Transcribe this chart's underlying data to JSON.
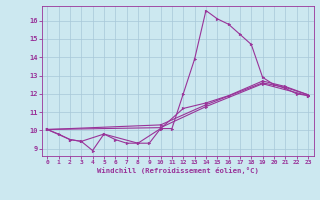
{
  "xlabel": "Windchill (Refroidissement éolien,°C)",
  "bg_color": "#cce8f0",
  "line_color": "#993399",
  "grid_color": "#a8c8d8",
  "xlim": [
    -0.5,
    23.5
  ],
  "ylim": [
    8.6,
    16.8
  ],
  "xticks": [
    0,
    1,
    2,
    3,
    4,
    5,
    6,
    7,
    8,
    9,
    10,
    11,
    12,
    13,
    14,
    15,
    16,
    17,
    18,
    19,
    20,
    21,
    22,
    23
  ],
  "yticks": [
    9,
    10,
    11,
    12,
    13,
    14,
    15,
    16
  ],
  "curves": [
    {
      "x": [
        0,
        1,
        2,
        3,
        4,
        5,
        6,
        7,
        8,
        9,
        10,
        11,
        12,
        13,
        14,
        15,
        16,
        17,
        18,
        19,
        20,
        21,
        22,
        23
      ],
      "y": [
        10.05,
        9.8,
        9.5,
        9.4,
        8.9,
        9.8,
        9.5,
        9.3,
        9.3,
        9.3,
        10.1,
        10.1,
        12.0,
        13.9,
        16.55,
        16.1,
        15.8,
        15.25,
        14.7,
        12.9,
        12.5,
        12.3,
        12.0,
        11.9
      ]
    },
    {
      "x": [
        0,
        2,
        3,
        5,
        8,
        10,
        12,
        14,
        16,
        19,
        21,
        23
      ],
      "y": [
        10.05,
        9.5,
        9.4,
        9.8,
        9.3,
        10.1,
        11.2,
        11.5,
        11.9,
        12.7,
        12.4,
        11.95
      ]
    },
    {
      "x": [
        0,
        10,
        14,
        19,
        21,
        23
      ],
      "y": [
        10.05,
        10.3,
        11.4,
        12.6,
        12.35,
        11.95
      ]
    },
    {
      "x": [
        0,
        10,
        14,
        19,
        23
      ],
      "y": [
        10.05,
        10.15,
        11.3,
        12.55,
        11.9
      ]
    }
  ]
}
